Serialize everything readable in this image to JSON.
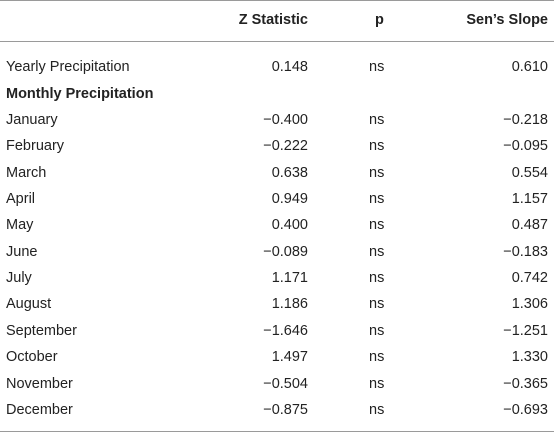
{
  "table": {
    "headers": {
      "label": "",
      "z": "Z Statistic",
      "p": "p",
      "slope": "Sen’s Slope"
    },
    "yearly": {
      "label": "Yearly Precipitation",
      "z": "0.148",
      "p": "ns",
      "slope": "0.610"
    },
    "section_label": "Monthly Precipitation",
    "rows": [
      {
        "label": "January",
        "z": "−0.400",
        "p": "ns",
        "slope": "−0.218"
      },
      {
        "label": "February",
        "z": "−0.222",
        "p": "ns",
        "slope": "−0.095"
      },
      {
        "label": "March",
        "z": "0.638",
        "p": "ns",
        "slope": "0.554"
      },
      {
        "label": "April",
        "z": "0.949",
        "p": "ns",
        "slope": "1.157"
      },
      {
        "label": "May",
        "z": "0.400",
        "p": "ns",
        "slope": "0.487"
      },
      {
        "label": "June",
        "z": "−0.089",
        "p": "ns",
        "slope": "−0.183"
      },
      {
        "label": "July",
        "z": "1.171",
        "p": "ns",
        "slope": "0.742"
      },
      {
        "label": "August",
        "z": "1.186",
        "p": "ns",
        "slope": "1.306"
      },
      {
        "label": "September",
        "z": "−1.646",
        "p": "ns",
        "slope": "−1.251"
      },
      {
        "label": "October",
        "z": "1.497",
        "p": "ns",
        "slope": "1.330"
      },
      {
        "label": "November",
        "z": "−0.504",
        "p": "ns",
        "slope": "−0.365"
      },
      {
        "label": "December",
        "z": "−0.875",
        "p": "ns",
        "slope": "−0.693"
      }
    ]
  }
}
